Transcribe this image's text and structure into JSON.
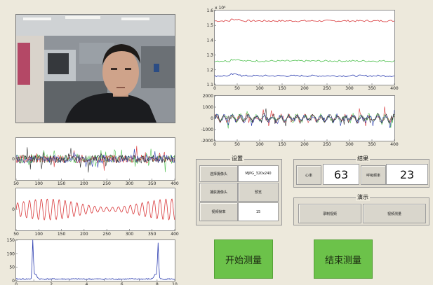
{
  "colors": {
    "bg": "#ede9dc",
    "green_button": "#6cc24a",
    "red": "#d9383a",
    "green": "#4fc04f",
    "blue": "#2e3fb0",
    "dark": "#333333"
  },
  "video": {
    "icon": "webcam-feed"
  },
  "plots": {
    "top_right": {
      "exponent": "x 10⁴",
      "y_ticks": [
        "1.6",
        "1.5",
        "1.4",
        "1.3",
        "1.2",
        "1.1"
      ],
      "x_ticks": [
        "0",
        "50",
        "100",
        "150",
        "200",
        "250",
        "300",
        "350",
        "400"
      ]
    },
    "mid_right": {
      "y_ticks": [
        "2000",
        "1000",
        "0",
        "-1000",
        "-2000"
      ],
      "x_ticks": [
        "0",
        "50",
        "100",
        "150",
        "200",
        "250",
        "300",
        "350",
        "400"
      ]
    },
    "left1": {
      "y_ticks": [
        "0"
      ],
      "x_ticks": [
        "50",
        "100",
        "150",
        "200",
        "250",
        "300",
        "350",
        "400"
      ]
    },
    "left2": {
      "y_ticks": [
        "0"
      ],
      "x_ticks": [
        "50",
        "100",
        "150",
        "200",
        "250",
        "300",
        "350",
        "400"
      ]
    },
    "left3": {
      "y_ticks": [
        "150",
        "100",
        "50",
        "0"
      ],
      "x_ticks": [
        "0",
        "",
        "2",
        "",
        "4",
        "",
        "6",
        "",
        "8",
        "10"
      ]
    }
  },
  "settings": {
    "title": "设置",
    "row1_label": "选择摄像头",
    "row1_value": "MJPG_320x240",
    "row2_label": "捕获摄像头",
    "row2_value": "预览",
    "row3_label": "视频帧率",
    "row3_value": "15"
  },
  "results": {
    "title": "结果",
    "heart_label": "心率",
    "heart_value": "63",
    "breath_label": "呼吸频率",
    "breath_value": "23"
  },
  "demo": {
    "title": "演示",
    "btn1": "录制视频",
    "btn2": "视频测量"
  },
  "actions": {
    "start": "开始测量",
    "stop": "结束测量"
  }
}
